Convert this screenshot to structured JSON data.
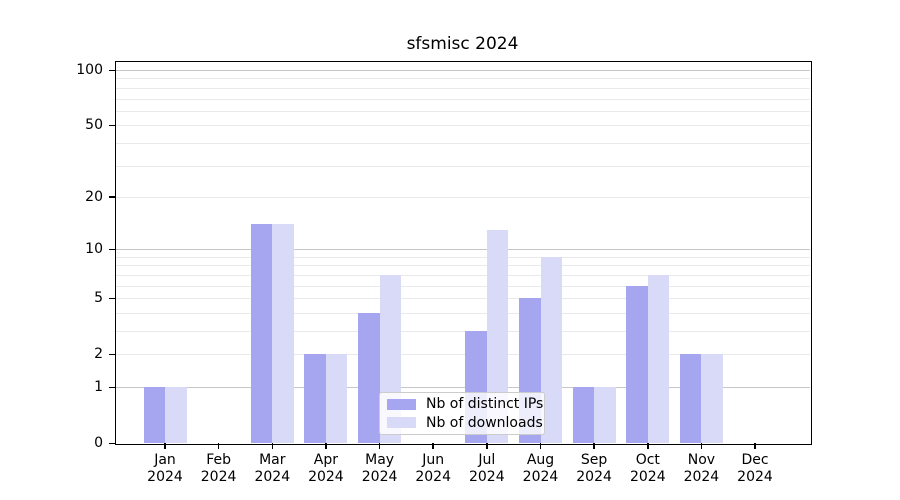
{
  "chart_data": {
    "type": "bar",
    "title": "sfsmisc 2024",
    "categories": [
      "Jan",
      "Feb",
      "Mar",
      "Apr",
      "May",
      "Jun",
      "Jul",
      "Aug",
      "Sep",
      "Oct",
      "Nov",
      "Dec"
    ],
    "x_year_label": "2024",
    "series": [
      {
        "name": "Nb of distinct IPs",
        "color": "#a6a6f0",
        "values": [
          1,
          0,
          14,
          2,
          4,
          0,
          3,
          5,
          1,
          6,
          2,
          0
        ]
      },
      {
        "name": "Nb of downloads",
        "color": "#d9d9f8",
        "values": [
          1,
          0,
          14,
          2,
          7,
          0,
          13,
          9,
          1,
          7,
          2,
          0
        ]
      }
    ],
    "y_axis": {
      "scale": "log10(1+x)",
      "ticks": [
        0,
        1,
        2,
        5,
        10,
        20,
        50,
        100
      ],
      "max": 112,
      "gridlines_major": [
        1,
        10,
        100
      ],
      "gridlines_minor": [
        2,
        3,
        4,
        5,
        6,
        7,
        8,
        9,
        20,
        30,
        40,
        50,
        60,
        70,
        80,
        90
      ],
      "grid_major_color": "#c6c6c6",
      "grid_minor_color": "#e9e9e9"
    },
    "legend": {
      "position": "inside-bottom-center",
      "items": [
        "Nb of distinct IPs",
        "Nb of downloads"
      ]
    }
  }
}
